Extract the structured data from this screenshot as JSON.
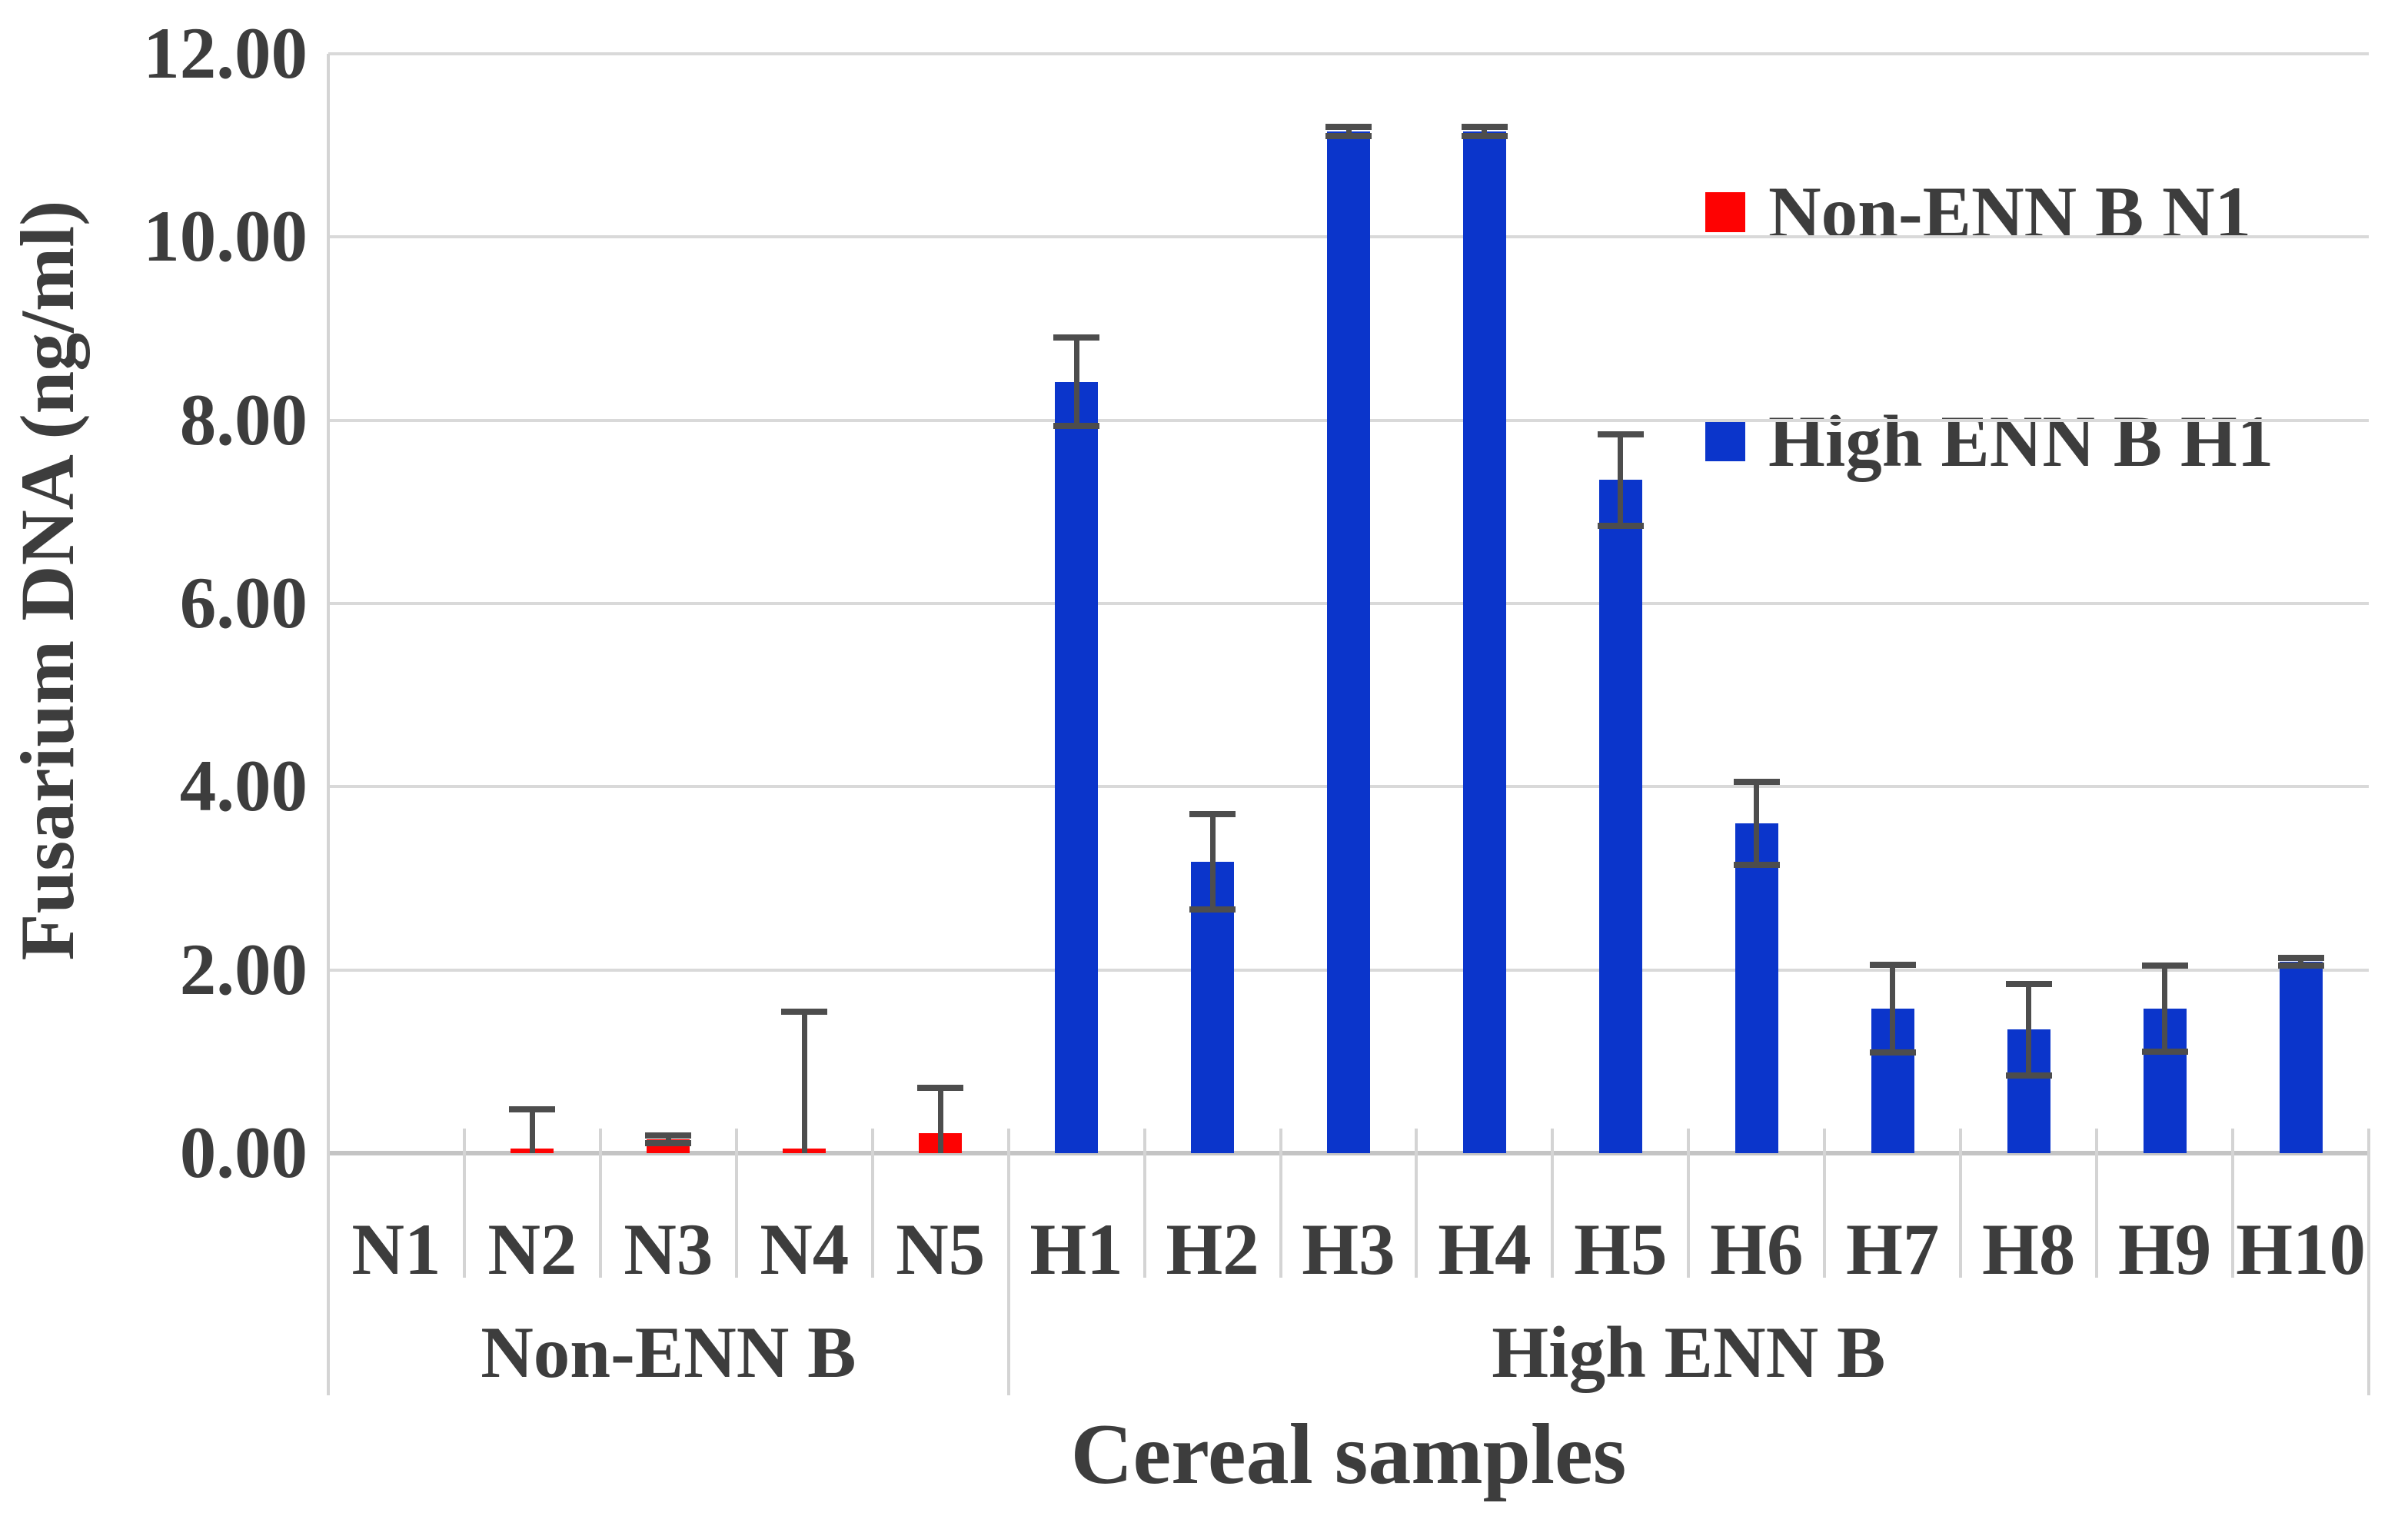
{
  "figure": {
    "background": "#ffffff",
    "grid_color": "#d9d9d9",
    "axis_color": "#c4c4c4",
    "error_bar_color": "#4d4d4d",
    "text_color": "#3d3d3d"
  },
  "legend": {
    "position": "upper right",
    "entries": [
      {
        "label": "Non-ENN B N1",
        "color": "#fe0202"
      },
      {
        "label": "High ENN B H1",
        "color": "#0b35cb"
      }
    ]
  },
  "chart_data": {
    "type": "bar",
    "title": "",
    "xlabel": "Cereal samples",
    "ylabel": "Fusarium DNA (ng/ml)",
    "ylim": [
      0,
      12
    ],
    "grid": true,
    "legend_position": "upper right",
    "yticks": [
      12,
      10,
      8,
      6,
      4,
      2,
      0
    ],
    "ytick_labels": [
      "12.00",
      "10.00",
      "8.00",
      "6.00",
      "4.00",
      "2.00",
      "0.00"
    ],
    "categories": [
      "N1",
      "N2",
      "N3",
      "N4",
      "N5",
      "H1",
      "H2",
      "H3",
      "H4",
      "H5",
      "H6",
      "H7",
      "H8",
      "H9",
      "H10"
    ],
    "series": [
      {
        "name": "Non-ENN B N1",
        "color": "#fe0202"
      },
      {
        "name": "High ENN B H1",
        "color": "#0b35cb"
      }
    ],
    "groups": [
      {
        "label": "Non-ENN B",
        "first": "N1",
        "last": "N5"
      },
      {
        "label": "High ENN B",
        "first": "H1",
        "last": "H10"
      }
    ],
    "samples": [
      {
        "label": "N1",
        "group": "Non-ENN B",
        "series": "Non-ENN B N1",
        "value": 0.0,
        "error": 0.0
      },
      {
        "label": "N2",
        "group": "Non-ENN B",
        "series": "Non-ENN B N1",
        "value": 0.05,
        "error": 0.43
      },
      {
        "label": "N3",
        "group": "Non-ENN B",
        "series": "Non-ENN B N1",
        "value": 0.15,
        "error": 0.04
      },
      {
        "label": "N4",
        "group": "Non-ENN B",
        "series": "Non-ENN B N1",
        "value": 0.05,
        "error": 1.49
      },
      {
        "label": "N5",
        "group": "Non-ENN B",
        "series": "Non-ENN B N1",
        "value": 0.22,
        "error": 0.49
      },
      {
        "label": "H1",
        "group": "High ENN B",
        "series": "High ENN B H1",
        "value": 8.42,
        "error": 0.48
      },
      {
        "label": "H2",
        "group": "High ENN B",
        "series": "High ENN B H1",
        "value": 3.18,
        "error": 0.52
      },
      {
        "label": "H3",
        "group": "High ENN B",
        "series": "High ENN B H1",
        "value": 11.15,
        "error": 0.05
      },
      {
        "label": "H4",
        "group": "High ENN B",
        "series": "High ENN B H1",
        "value": 11.15,
        "error": 0.05
      },
      {
        "label": "H5",
        "group": "High ENN B",
        "series": "High ENN B H1",
        "value": 7.35,
        "error": 0.5
      },
      {
        "label": "H6",
        "group": "High ENN B",
        "series": "High ENN B H1",
        "value": 3.6,
        "error": 0.45
      },
      {
        "label": "H7",
        "group": "High ENN B",
        "series": "High ENN B H1",
        "value": 1.58,
        "error": 0.48
      },
      {
        "label": "H8",
        "group": "High ENN B",
        "series": "High ENN B H1",
        "value": 1.35,
        "error": 0.5
      },
      {
        "label": "H9",
        "group": "High ENN B",
        "series": "High ENN B H1",
        "value": 1.58,
        "error": 0.47
      },
      {
        "label": "H10",
        "group": "High ENN B",
        "series": "High ENN B H1",
        "value": 2.09,
        "error": 0.04
      }
    ]
  }
}
